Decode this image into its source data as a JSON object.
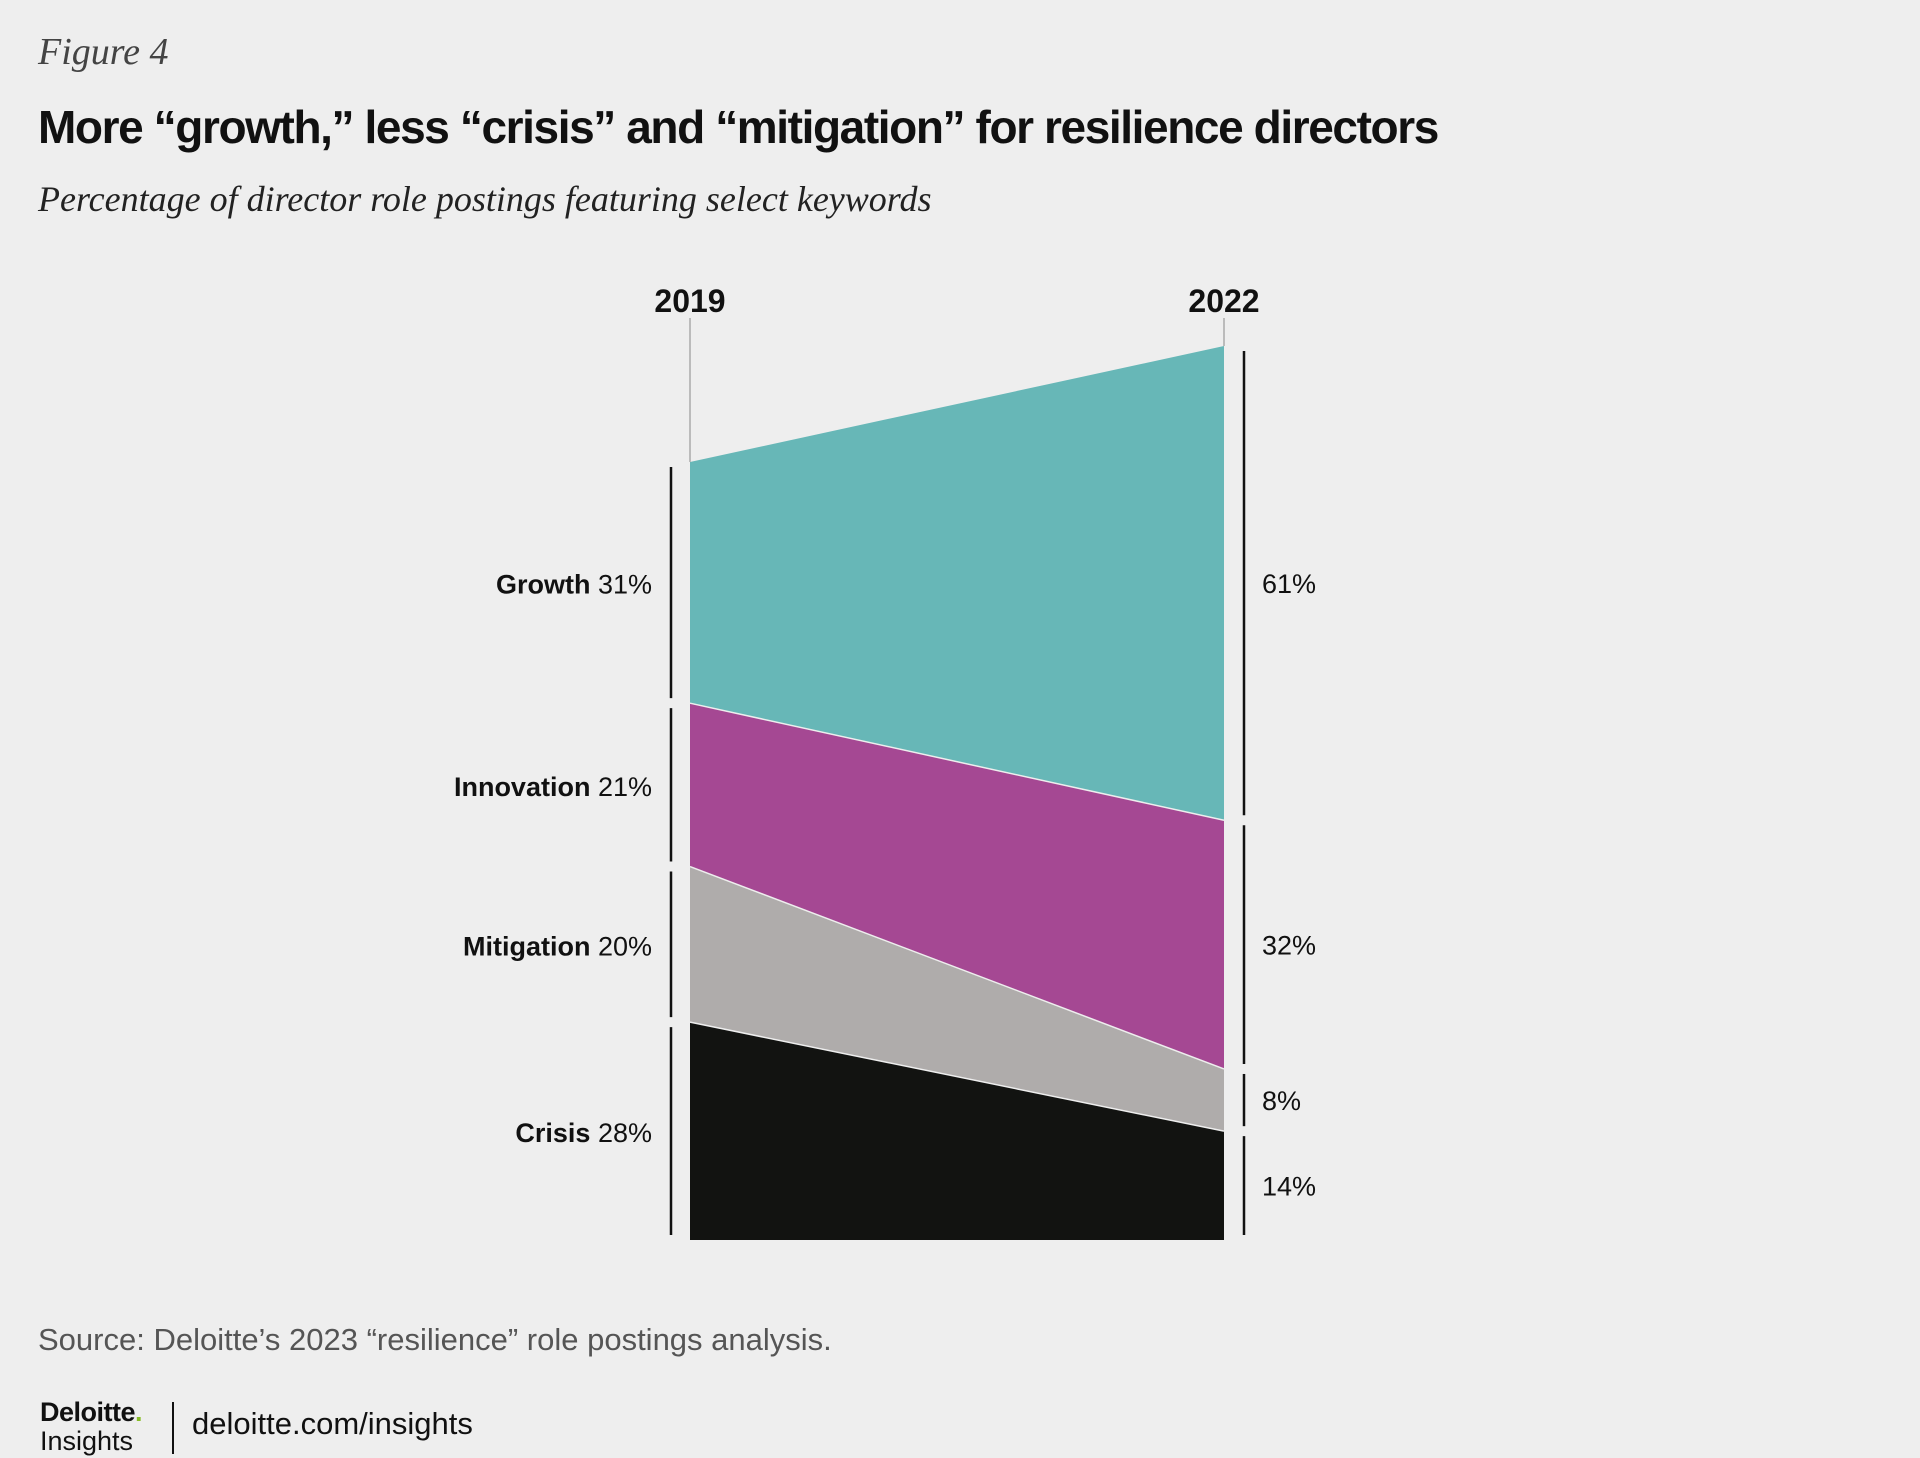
{
  "figure_label": "Figure 4",
  "title": "More “growth,” less “crisis” and “mitigation” for resilience directors",
  "subtitle": "Percentage of director role postings featuring select keywords",
  "source": "Source: Deloitte’s 2023 “resilience” role postings analysis.",
  "footer": {
    "logo_brand": "Deloitte",
    "logo_dot": ".",
    "logo_sub": "Insights",
    "url": "deloitte.com/insights"
  },
  "colors": {
    "background": "#eeeeee",
    "growth": "#67b7b7",
    "innovation": "#a54893",
    "mitigation": "#afacab",
    "crisis": "#121311",
    "axis": "#111111",
    "tick": "#bbbbbb"
  },
  "chart_data": {
    "type": "area",
    "subtype": "100% stacked slope",
    "x": [
      "2019",
      "2022"
    ],
    "series": [
      {
        "name": "Crisis",
        "values": [
          28,
          14
        ],
        "labels": [
          "28%",
          "14%"
        ],
        "color": "#121311"
      },
      {
        "name": "Mitigation",
        "values": [
          20,
          8
        ],
        "labels": [
          "20%",
          "8%"
        ],
        "color": "#afacab"
      },
      {
        "name": "Innovation",
        "values": [
          21,
          32
        ],
        "labels": [
          "21%",
          "32%"
        ],
        "color": "#a54893"
      },
      {
        "name": "Growth",
        "values": [
          31,
          61
        ],
        "labels": [
          "31%",
          "61%"
        ],
        "color": "#67b7b7"
      }
    ],
    "stack_order": "bottom-to-top",
    "legend": "inline labels at left of 2019 column"
  }
}
